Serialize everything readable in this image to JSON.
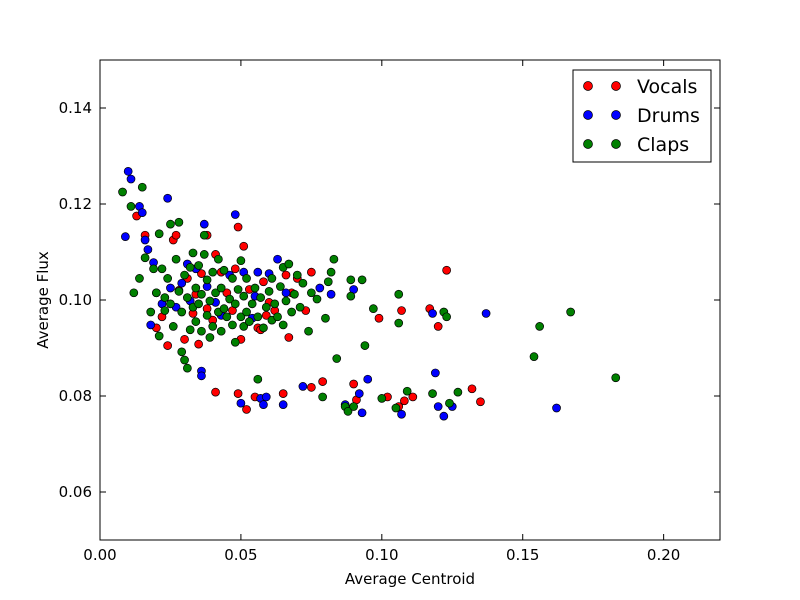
{
  "chart_data": {
    "type": "scatter",
    "title": "",
    "xlabel": "Average Centroid",
    "ylabel": "Average Flux",
    "xlim": [
      0.0,
      0.22
    ],
    "ylim": [
      0.05,
      0.15
    ],
    "x_ticks": [
      0.0,
      0.05,
      0.1,
      0.15,
      0.2
    ],
    "x_tick_labels": [
      "0.00",
      "0.05",
      "0.10",
      "0.15",
      "0.20"
    ],
    "y_ticks": [
      0.06,
      0.08,
      0.1,
      0.12,
      0.14
    ],
    "y_tick_labels": [
      "0.06",
      "0.08",
      "0.10",
      "0.12",
      "0.14"
    ],
    "grid": false,
    "legend_position": "top-right",
    "series": [
      {
        "name": "Vocals",
        "color": "#ff0000",
        "points": [
          [
            0.013,
            0.1175
          ],
          [
            0.016,
            0.1135
          ],
          [
            0.02,
            0.0942
          ],
          [
            0.022,
            0.0965
          ],
          [
            0.024,
            0.0905
          ],
          [
            0.026,
            0.1125
          ],
          [
            0.027,
            0.1135
          ],
          [
            0.028,
            0.102
          ],
          [
            0.03,
            0.0918
          ],
          [
            0.031,
            0.1045
          ],
          [
            0.033,
            0.0972
          ],
          [
            0.034,
            0.1012
          ],
          [
            0.035,
            0.0908
          ],
          [
            0.036,
            0.1055
          ],
          [
            0.038,
            0.1135
          ],
          [
            0.038,
            0.0982
          ],
          [
            0.04,
            0.0958
          ],
          [
            0.041,
            0.0808
          ],
          [
            0.041,
            0.1095
          ],
          [
            0.043,
            0.1058
          ],
          [
            0.045,
            0.1015
          ],
          [
            0.047,
            0.0978
          ],
          [
            0.048,
            0.1065
          ],
          [
            0.049,
            0.0805
          ],
          [
            0.049,
            0.1152
          ],
          [
            0.05,
            0.0918
          ],
          [
            0.051,
            0.1112
          ],
          [
            0.052,
            0.0772
          ],
          [
            0.053,
            0.1022
          ],
          [
            0.055,
            0.0798
          ],
          [
            0.056,
            0.0942
          ],
          [
            0.057,
            0.0938
          ],
          [
            0.058,
            0.1038
          ],
          [
            0.059,
            0.0968
          ],
          [
            0.06,
            0.0995
          ],
          [
            0.062,
            0.0978
          ],
          [
            0.065,
            0.0805
          ],
          [
            0.066,
            0.1052
          ],
          [
            0.067,
            0.0922
          ],
          [
            0.068,
            0.1015
          ],
          [
            0.07,
            0.1045
          ],
          [
            0.073,
            0.0978
          ],
          [
            0.075,
            0.0818
          ],
          [
            0.075,
            0.1058
          ],
          [
            0.079,
            0.083
          ],
          [
            0.09,
            0.0825
          ],
          [
            0.091,
            0.0792
          ],
          [
            0.099,
            0.0962
          ],
          [
            0.102,
            0.0798
          ],
          [
            0.106,
            0.0778
          ],
          [
            0.107,
            0.0978
          ],
          [
            0.108,
            0.079
          ],
          [
            0.111,
            0.0798
          ],
          [
            0.117,
            0.0982
          ],
          [
            0.12,
            0.0945
          ],
          [
            0.123,
            0.1062
          ],
          [
            0.132,
            0.0815
          ],
          [
            0.135,
            0.0788
          ]
        ]
      },
      {
        "name": "Drums",
        "color": "#0000ff",
        "points": [
          [
            0.009,
            0.1132
          ],
          [
            0.01,
            0.1268
          ],
          [
            0.011,
            0.1252
          ],
          [
            0.014,
            0.1195
          ],
          [
            0.015,
            0.1182
          ],
          [
            0.016,
            0.1125
          ],
          [
            0.017,
            0.1105
          ],
          [
            0.018,
            0.0948
          ],
          [
            0.019,
            0.1078
          ],
          [
            0.02,
            0.1015
          ],
          [
            0.022,
            0.0992
          ],
          [
            0.024,
            0.1212
          ],
          [
            0.025,
            0.1025
          ],
          [
            0.027,
            0.0985
          ],
          [
            0.029,
            0.1035
          ],
          [
            0.031,
            0.1075
          ],
          [
            0.032,
            0.0998
          ],
          [
            0.034,
            0.1065
          ],
          [
            0.036,
            0.0852
          ],
          [
            0.036,
            0.0842
          ],
          [
            0.037,
            0.1158
          ],
          [
            0.038,
            0.1028
          ],
          [
            0.041,
            0.0995
          ],
          [
            0.043,
            0.0968
          ],
          [
            0.046,
            0.1052
          ],
          [
            0.048,
            0.1178
          ],
          [
            0.05,
            0.0785
          ],
          [
            0.051,
            0.1058
          ],
          [
            0.054,
            0.0962
          ],
          [
            0.055,
            0.1008
          ],
          [
            0.056,
            0.1058
          ],
          [
            0.057,
            0.0795
          ],
          [
            0.058,
            0.0782
          ],
          [
            0.059,
            0.0798
          ],
          [
            0.06,
            0.1055
          ],
          [
            0.063,
            0.1085
          ],
          [
            0.065,
            0.0782
          ],
          [
            0.066,
            0.1015
          ],
          [
            0.072,
            0.082
          ],
          [
            0.078,
            0.1025
          ],
          [
            0.082,
            0.1012
          ],
          [
            0.087,
            0.0782
          ],
          [
            0.09,
            0.1022
          ],
          [
            0.092,
            0.0805
          ],
          [
            0.093,
            0.0765
          ],
          [
            0.095,
            0.0835
          ],
          [
            0.107,
            0.0762
          ],
          [
            0.118,
            0.0972
          ],
          [
            0.119,
            0.0848
          ],
          [
            0.12,
            0.0778
          ],
          [
            0.122,
            0.0758
          ],
          [
            0.125,
            0.0778
          ],
          [
            0.137,
            0.0972
          ],
          [
            0.162,
            0.0775
          ]
        ]
      },
      {
        "name": "Claps",
        "color": "#008000",
        "points": [
          [
            0.008,
            0.1225
          ],
          [
            0.011,
            0.1195
          ],
          [
            0.012,
            0.1015
          ],
          [
            0.014,
            0.1045
          ],
          [
            0.015,
            0.1235
          ],
          [
            0.016,
            0.1088
          ],
          [
            0.018,
            0.0975
          ],
          [
            0.019,
            0.1065
          ],
          [
            0.02,
            0.1015
          ],
          [
            0.021,
            0.0925
          ],
          [
            0.021,
            0.1138
          ],
          [
            0.022,
            0.1065
          ],
          [
            0.023,
            0.1005
          ],
          [
            0.023,
            0.0978
          ],
          [
            0.024,
            0.1045
          ],
          [
            0.025,
            0.0992
          ],
          [
            0.025,
            0.1158
          ],
          [
            0.026,
            0.0945
          ],
          [
            0.027,
            0.1085
          ],
          [
            0.028,
            0.1018
          ],
          [
            0.028,
            0.1162
          ],
          [
            0.029,
            0.0892
          ],
          [
            0.029,
            0.0975
          ],
          [
            0.03,
            0.0875
          ],
          [
            0.03,
            0.1052
          ],
          [
            0.031,
            0.0858
          ],
          [
            0.031,
            0.1005
          ],
          [
            0.032,
            0.0938
          ],
          [
            0.032,
            0.1068
          ],
          [
            0.033,
            0.0985
          ],
          [
            0.033,
            0.1098
          ],
          [
            0.034,
            0.0955
          ],
          [
            0.034,
            0.1025
          ],
          [
            0.035,
            0.0992
          ],
          [
            0.035,
            0.1072
          ],
          [
            0.036,
            0.0935
          ],
          [
            0.036,
            0.1012
          ],
          [
            0.037,
            0.1095
          ],
          [
            0.037,
            0.1135
          ],
          [
            0.038,
            0.0968
          ],
          [
            0.038,
            0.1042
          ],
          [
            0.039,
            0.0922
          ],
          [
            0.039,
            0.0998
          ],
          [
            0.04,
            0.1058
          ],
          [
            0.04,
            0.0945
          ],
          [
            0.041,
            0.1015
          ],
          [
            0.042,
            0.0975
          ],
          [
            0.042,
            0.1085
          ],
          [
            0.043,
            0.0935
          ],
          [
            0.043,
            0.1025
          ],
          [
            0.044,
            0.0982
          ],
          [
            0.044,
            0.1062
          ],
          [
            0.045,
            0.0965
          ],
          [
            0.046,
            0.1002
          ],
          [
            0.047,
            0.0948
          ],
          [
            0.047,
            0.1045
          ],
          [
            0.048,
            0.0912
          ],
          [
            0.048,
            0.0992
          ],
          [
            0.049,
            0.1022
          ],
          [
            0.05,
            0.0965
          ],
          [
            0.05,
            0.1082
          ],
          [
            0.051,
            0.0945
          ],
          [
            0.051,
            0.1008
          ],
          [
            0.052,
            0.0975
          ],
          [
            0.052,
            0.1045
          ],
          [
            0.053,
            0.0955
          ],
          [
            0.054,
            0.0992
          ],
          [
            0.055,
            0.1025
          ],
          [
            0.056,
            0.0965
          ],
          [
            0.056,
            0.0835
          ],
          [
            0.057,
            0.1005
          ],
          [
            0.058,
            0.0942
          ],
          [
            0.059,
            0.0985
          ],
          [
            0.06,
            0.1018
          ],
          [
            0.061,
            0.0958
          ],
          [
            0.061,
            0.1045
          ],
          [
            0.062,
            0.0992
          ],
          [
            0.063,
            0.0965
          ],
          [
            0.064,
            0.1028
          ],
          [
            0.065,
            0.0948
          ],
          [
            0.065,
            0.1068
          ],
          [
            0.066,
            0.0998
          ],
          [
            0.067,
            0.1075
          ],
          [
            0.068,
            0.0975
          ],
          [
            0.069,
            0.1012
          ],
          [
            0.07,
            0.1052
          ],
          [
            0.071,
            0.0985
          ],
          [
            0.072,
            0.1035
          ],
          [
            0.074,
            0.0935
          ],
          [
            0.075,
            0.1015
          ],
          [
            0.077,
            0.1002
          ],
          [
            0.079,
            0.0798
          ],
          [
            0.08,
            0.0962
          ],
          [
            0.081,
            0.1038
          ],
          [
            0.082,
            0.1058
          ],
          [
            0.083,
            0.1085
          ],
          [
            0.084,
            0.0878
          ],
          [
            0.087,
            0.0778
          ],
          [
            0.088,
            0.0768
          ],
          [
            0.089,
            0.1042
          ],
          [
            0.089,
            0.1008
          ],
          [
            0.09,
            0.0778
          ],
          [
            0.093,
            0.1042
          ],
          [
            0.094,
            0.0905
          ],
          [
            0.097,
            0.0982
          ],
          [
            0.1,
            0.0795
          ],
          [
            0.105,
            0.0775
          ],
          [
            0.106,
            0.0952
          ],
          [
            0.106,
            0.1012
          ],
          [
            0.109,
            0.081
          ],
          [
            0.118,
            0.0805
          ],
          [
            0.122,
            0.0975
          ],
          [
            0.123,
            0.0965
          ],
          [
            0.124,
            0.0785
          ],
          [
            0.127,
            0.0808
          ],
          [
            0.154,
            0.0882
          ],
          [
            0.156,
            0.0945
          ],
          [
            0.167,
            0.0975
          ],
          [
            0.183,
            0.0838
          ]
        ]
      }
    ]
  }
}
